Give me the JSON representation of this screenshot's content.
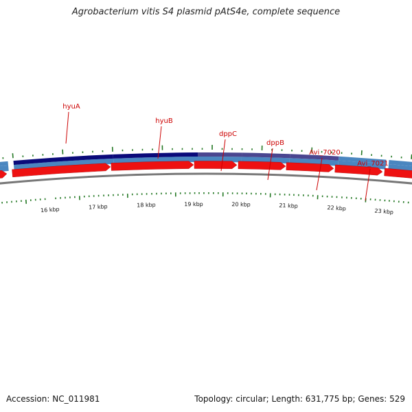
{
  "title": "Agrobacterium vitis S4 plasmid pAtS4e, complete sequence",
  "footer": {
    "accession": "Accession: NC_011981",
    "summary": "Topology: circular; Length: 631,775 bp; Genes: 529"
  },
  "colors": {
    "cds_forward": "#ee1111",
    "gene_track": "#4a86c0",
    "highlight_dark": "#0a0a7a",
    "highlight_purple": "#4a4690",
    "backbone": "#777777",
    "ticks": "#227722",
    "labels": "#cc0000"
  },
  "gene_labels": [
    {
      "name": "hyuA"
    },
    {
      "name": "hyuB"
    },
    {
      "name": "dppC"
    },
    {
      "name": "dppB"
    },
    {
      "name": "Avi_7020"
    },
    {
      "name": "Avi_7021"
    }
  ],
  "scale_labels": [
    {
      "label": "16 kbp"
    },
    {
      "label": "17 kbp"
    },
    {
      "label": "18 kbp"
    },
    {
      "label": "19 kbp"
    },
    {
      "label": "20 kbp"
    },
    {
      "label": "21 kbp"
    },
    {
      "label": "22 kbp"
    },
    {
      "label": "23 kbp"
    }
  ]
}
